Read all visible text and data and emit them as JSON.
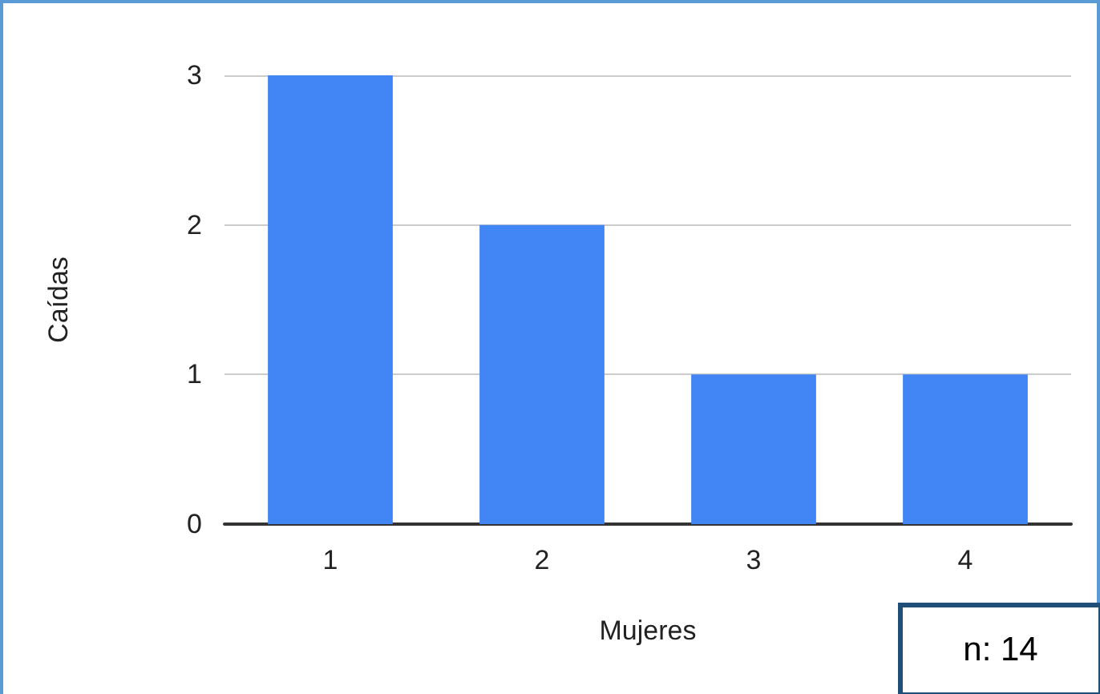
{
  "chart_data": {
    "type": "bar",
    "xlabel": "Mujeres",
    "ylabel": "Caídas",
    "categories": [
      "1",
      "2",
      "3",
      "4"
    ],
    "values": [
      3,
      2,
      1,
      1
    ],
    "color": "#4285f4",
    "ylim": [
      0,
      3
    ],
    "yticks": [
      0,
      1,
      2,
      3
    ],
    "grid": "y",
    "annotations": [
      "n: 14"
    ]
  }
}
